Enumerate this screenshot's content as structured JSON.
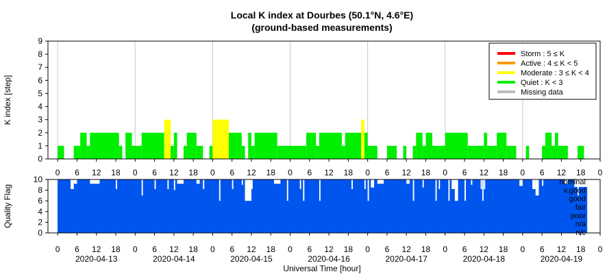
{
  "chart_data": [
    {
      "type": "bar",
      "title": "Local K index at Dourbes (50.1°N, 4.6°E)",
      "subtitle": "(ground-based measurements)",
      "ylabel": "K index [step]",
      "ylim": [
        0,
        9
      ],
      "yticks": [
        "0",
        "1",
        "2",
        "3",
        "4",
        "5",
        "6",
        "7",
        "8",
        "9"
      ],
      "xlim_hours": [
        -3,
        168
      ],
      "x_tick_labels": [
        "0",
        "6",
        "12",
        "18",
        "0",
        "6",
        "12",
        "18",
        "0",
        "6",
        "12",
        "18",
        "0",
        "6",
        "12",
        "18",
        "0",
        "6",
        "12",
        "18",
        "0",
        "6",
        "12",
        "18",
        "0",
        "6",
        "12",
        "18",
        "0"
      ],
      "grid": "vertical at day boundaries",
      "legend_position": "top-right",
      "legend": [
        {
          "label": "Storm : 5 ≤ K",
          "color": "#ff0000"
        },
        {
          "label": "Active : 4 ≤ K < 5",
          "color": "#ff9900"
        },
        {
          "label": "Moderate : 3 ≤ K < 4",
          "color": "#ffff00"
        },
        {
          "label": "Quiet : K < 3",
          "color": "#00ee00"
        },
        {
          "label": "Missing data",
          "color": "#bbbbbb"
        }
      ],
      "segments": [
        {
          "start": 0,
          "end": 2,
          "k": 1
        },
        {
          "start": 5,
          "end": 7,
          "k": 1
        },
        {
          "start": 7,
          "end": 9,
          "k": 2
        },
        {
          "start": 9,
          "end": 10,
          "k": 1
        },
        {
          "start": 10,
          "end": 19,
          "k": 2
        },
        {
          "start": 19,
          "end": 20,
          "k": 1
        },
        {
          "start": 21,
          "end": 23,
          "k": 2
        },
        {
          "start": 23,
          "end": 26,
          "k": 1
        },
        {
          "start": 26,
          "end": 33,
          "k": 2
        },
        {
          "start": 33,
          "end": 35,
          "k": 3
        },
        {
          "start": 35,
          "end": 36,
          "k": 1
        },
        {
          "start": 36,
          "end": 37,
          "k": 2
        },
        {
          "start": 39,
          "end": 40,
          "k": 1
        },
        {
          "start": 40,
          "end": 43,
          "k": 2
        },
        {
          "start": 43,
          "end": 45,
          "k": 1
        },
        {
          "start": 47,
          "end": 48,
          "k": 1
        },
        {
          "start": 48,
          "end": 53,
          "k": 3
        },
        {
          "start": 53,
          "end": 57,
          "k": 2
        },
        {
          "start": 57,
          "end": 58,
          "k": 1
        },
        {
          "start": 59,
          "end": 60,
          "k": 2
        },
        {
          "start": 60,
          "end": 61,
          "k": 1
        },
        {
          "start": 61,
          "end": 68,
          "k": 2
        },
        {
          "start": 68,
          "end": 77,
          "k": 1
        },
        {
          "start": 77,
          "end": 80,
          "k": 2
        },
        {
          "start": 80,
          "end": 81,
          "k": 1
        },
        {
          "start": 81,
          "end": 88,
          "k": 2
        },
        {
          "start": 88,
          "end": 89,
          "k": 1
        },
        {
          "start": 89,
          "end": 94,
          "k": 2
        },
        {
          "start": 94,
          "end": 95,
          "k": 3
        },
        {
          "start": 95,
          "end": 96,
          "k": 2
        },
        {
          "start": 96,
          "end": 99,
          "k": 1
        },
        {
          "start": 102,
          "end": 105,
          "k": 1
        },
        {
          "start": 107,
          "end": 108,
          "k": 1
        },
        {
          "start": 110,
          "end": 111,
          "k": 1
        },
        {
          "start": 111,
          "end": 113,
          "k": 2
        },
        {
          "start": 113,
          "end": 114,
          "k": 1
        },
        {
          "start": 114,
          "end": 116,
          "k": 2
        },
        {
          "start": 116,
          "end": 120,
          "k": 1
        },
        {
          "start": 120,
          "end": 127,
          "k": 2
        },
        {
          "start": 127,
          "end": 132,
          "k": 1
        },
        {
          "start": 132,
          "end": 133,
          "k": 2
        },
        {
          "start": 133,
          "end": 136,
          "k": 1
        },
        {
          "start": 136,
          "end": 139,
          "k": 2
        },
        {
          "start": 139,
          "end": 142,
          "k": 1
        },
        {
          "start": 145,
          "end": 146,
          "k": 1
        },
        {
          "start": 150,
          "end": 151,
          "k": 1
        },
        {
          "start": 151,
          "end": 153,
          "k": 2
        },
        {
          "start": 153,
          "end": 154,
          "k": 1
        },
        {
          "start": 154,
          "end": 155,
          "k": 2
        },
        {
          "start": 155,
          "end": 158,
          "k": 1
        },
        {
          "start": 161,
          "end": 163,
          "k": 1
        }
      ]
    },
    {
      "type": "area",
      "ylabel": "Quality Flag",
      "ylim": [
        0,
        10
      ],
      "yticks": [
        "0",
        "2",
        "4",
        "6",
        "8",
        "10"
      ],
      "xlabel": "Universal Time [hour]",
      "date_labels": [
        "2020-04-13",
        "2020-04-14",
        "2020-04-15",
        "2020-04-16",
        "2020-04-17",
        "2020-04-18",
        "2020-04-19"
      ],
      "quality_levels": [
        "nominal",
        "v.good",
        "good",
        "fair",
        "poor",
        "n/a",
        "n/c"
      ],
      "base_value": 10,
      "dips": [
        {
          "start": 4,
          "end": 5,
          "value": 8.2
        },
        {
          "start": 5,
          "end": 6,
          "value": 9.2
        },
        {
          "start": 10,
          "end": 13,
          "value": 9.2
        },
        {
          "start": 18,
          "end": 18.4,
          "value": 8.2
        },
        {
          "start": 26,
          "end": 26.4,
          "value": 7.0
        },
        {
          "start": 30,
          "end": 30.4,
          "value": 8.2
        },
        {
          "start": 34,
          "end": 34.4,
          "value": 8.2
        },
        {
          "start": 36,
          "end": 36.4,
          "value": 8.0
        },
        {
          "start": 37,
          "end": 39,
          "value": 9.2
        },
        {
          "start": 43,
          "end": 44,
          "value": 9.2
        },
        {
          "start": 45,
          "end": 45.4,
          "value": 8.2
        },
        {
          "start": 50,
          "end": 50.4,
          "value": 6.0
        },
        {
          "start": 54,
          "end": 54.4,
          "value": 8.2
        },
        {
          "start": 57,
          "end": 57.4,
          "value": 9.0
        },
        {
          "start": 58,
          "end": 60,
          "value": 6.0
        },
        {
          "start": 60,
          "end": 60.4,
          "value": 8.2
        },
        {
          "start": 67,
          "end": 69,
          "value": 9.2
        },
        {
          "start": 71,
          "end": 71.4,
          "value": 6.0
        },
        {
          "start": 75,
          "end": 75.4,
          "value": 8.2
        },
        {
          "start": 76,
          "end": 76.4,
          "value": 6.0
        },
        {
          "start": 81,
          "end": 81.4,
          "value": 6.0
        },
        {
          "start": 91,
          "end": 91.4,
          "value": 8.2
        },
        {
          "start": 95,
          "end": 95.4,
          "value": 8.2
        },
        {
          "start": 96,
          "end": 96.4,
          "value": 6.0
        },
        {
          "start": 97,
          "end": 98,
          "value": 8.5
        },
        {
          "start": 99,
          "end": 101,
          "value": 9.2
        },
        {
          "start": 108,
          "end": 109,
          "value": 9.2
        },
        {
          "start": 110,
          "end": 110.4,
          "value": 6.0
        },
        {
          "start": 113,
          "end": 113.4,
          "value": 8.5
        },
        {
          "start": 117,
          "end": 117.4,
          "value": 6.0
        },
        {
          "start": 118,
          "end": 118.4,
          "value": 8.2
        },
        {
          "start": 121,
          "end": 121.4,
          "value": 6.0
        },
        {
          "start": 122,
          "end": 123,
          "value": 8.2
        },
        {
          "start": 123,
          "end": 124,
          "value": 6.0
        },
        {
          "start": 126,
          "end": 126.4,
          "value": 6.0
        },
        {
          "start": 128,
          "end": 128.4,
          "value": 9.0
        },
        {
          "start": 131,
          "end": 131.4,
          "value": 8.2
        },
        {
          "start": 131.5,
          "end": 131.9,
          "value": 6.0
        },
        {
          "start": 132,
          "end": 132.4,
          "value": 8.2
        },
        {
          "start": 143,
          "end": 144,
          "value": 8.8
        },
        {
          "start": 147,
          "end": 148,
          "value": 8.2
        },
        {
          "start": 148,
          "end": 149,
          "value": 7.0
        },
        {
          "start": 150,
          "end": 150.4,
          "value": 8.8
        },
        {
          "start": 157,
          "end": 158,
          "value": 9.2
        },
        {
          "start": 160,
          "end": 164,
          "value": 8.6
        },
        {
          "start": 161,
          "end": 161.4,
          "value": 7.0
        }
      ],
      "fill_color": "#0055ee"
    }
  ]
}
